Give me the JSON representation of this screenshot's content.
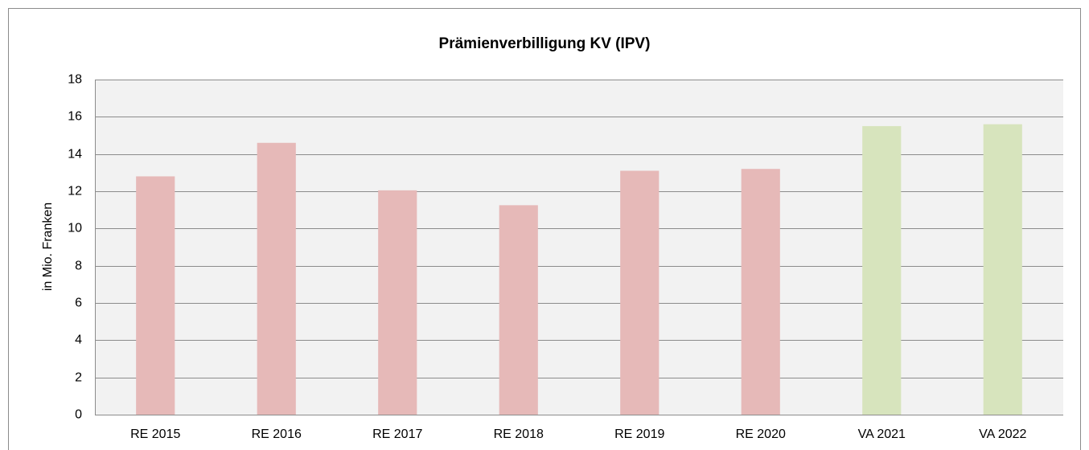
{
  "chart_data": {
    "type": "bar",
    "title": "Prämienverbilligung KV (IPV)",
    "y_label": "in Mio. Franken",
    "categories": [
      "RE 2015",
      "RE 2016",
      "RE 2017",
      "RE 2018",
      "RE 2019",
      "RE 2020",
      "VA 2021",
      "VA 2022"
    ],
    "values": [
      12.8,
      14.6,
      12.05,
      11.25,
      13.1,
      13.2,
      15.5,
      15.6
    ],
    "colors": [
      "#e6b9b8",
      "#e6b9b8",
      "#e6b9b8",
      "#e6b9b8",
      "#e6b9b8",
      "#e6b9b8",
      "#d7e4bd",
      "#d7e4bd"
    ],
    "ylim": [
      0,
      18
    ],
    "yticks": [
      0,
      2,
      4,
      6,
      8,
      10,
      12,
      14,
      16,
      18
    ],
    "grid": true
  }
}
